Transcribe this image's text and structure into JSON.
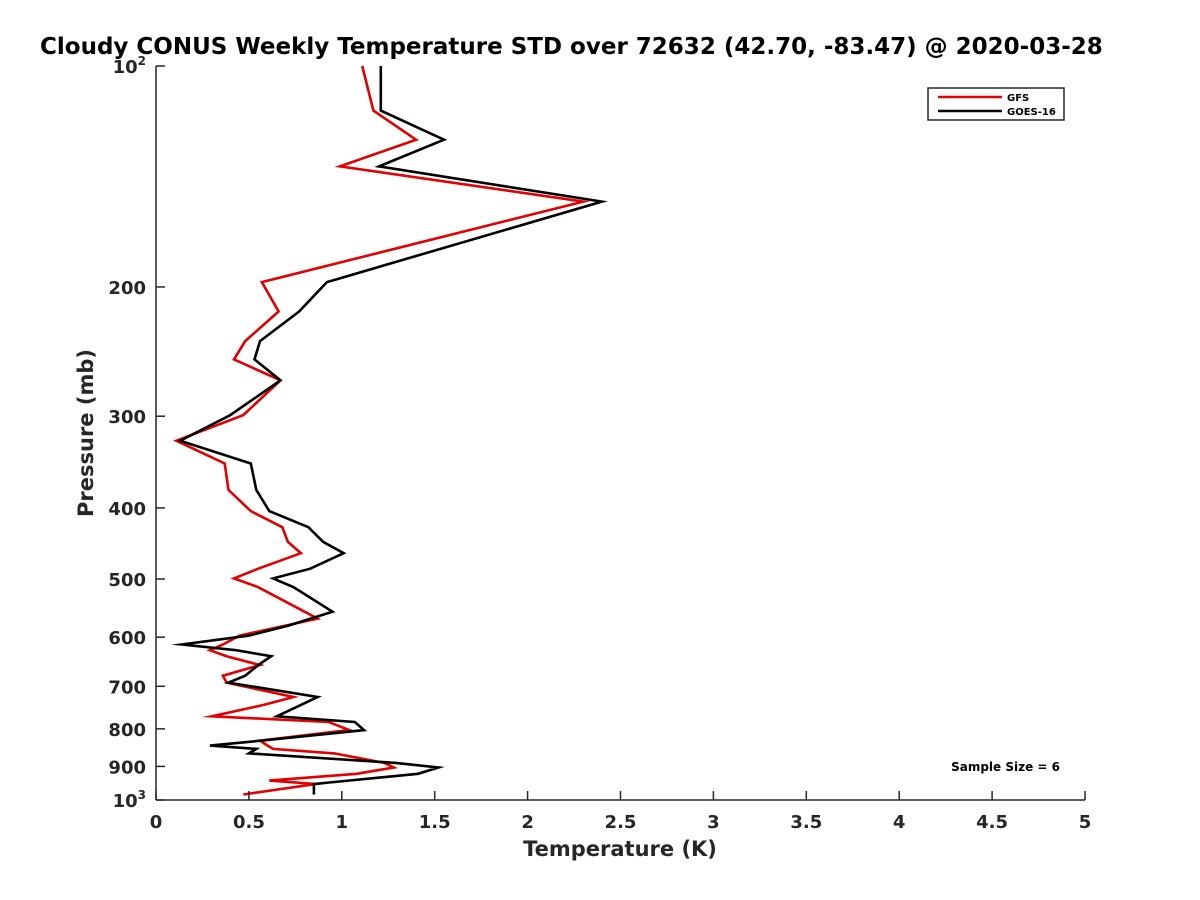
{
  "chart_data": {
    "type": "line",
    "title": "Cloudy CONUS Weekly Temperature STD over 72632 (42.70, -83.47) @ 2020-03-28",
    "xlabel": "Temperature (K)",
    "ylabel": "Pressure (mb)",
    "xlim": [
      0,
      5
    ],
    "ylim": [
      1000,
      100
    ],
    "y_scale": "log",
    "y_reversed": true,
    "grid": false,
    "legend_position": "top-right",
    "x_ticks": [
      "0",
      "0.5",
      "1",
      "1.5",
      "2",
      "2.5",
      "3",
      "3.5",
      "4",
      "4.5",
      "5"
    ],
    "y_ticks": [
      {
        "value": 100,
        "base": "10",
        "exp": "2"
      },
      {
        "value": 200,
        "label": "200"
      },
      {
        "value": 300,
        "label": "300"
      },
      {
        "value": 400,
        "label": "400"
      },
      {
        "value": 500,
        "label": "500"
      },
      {
        "value": 600,
        "label": "600"
      },
      {
        "value": 700,
        "label": "700"
      },
      {
        "value": 800,
        "label": "800"
      },
      {
        "value": 900,
        "label": "900"
      },
      {
        "value": 1000,
        "base": "10",
        "exp": "3"
      }
    ],
    "annotation": "Sample Size = 6",
    "series": [
      {
        "name": "GFS",
        "color": "#e00000",
        "points": [
          [
            1.11,
            100
          ],
          [
            1.17,
            115
          ],
          [
            1.4,
            126
          ],
          [
            0.99,
            137
          ],
          [
            2.3,
            153
          ],
          [
            0.57,
            197
          ],
          [
            0.66,
            216
          ],
          [
            0.48,
            237
          ],
          [
            0.42,
            251
          ],
          [
            0.67,
            268
          ],
          [
            0.47,
            299
          ],
          [
            0.11,
            324
          ],
          [
            0.37,
            348
          ],
          [
            0.39,
            378
          ],
          [
            0.51,
            404
          ],
          [
            0.68,
            425
          ],
          [
            0.71,
            445
          ],
          [
            0.78,
            461
          ],
          [
            0.55,
            484
          ],
          [
            0.42,
            499
          ],
          [
            0.55,
            513
          ],
          [
            0.8,
            554
          ],
          [
            0.87,
            566
          ],
          [
            0.45,
            597
          ],
          [
            0.36,
            614
          ],
          [
            0.29,
            625
          ],
          [
            0.38,
            637
          ],
          [
            0.56,
            655
          ],
          [
            0.36,
            677
          ],
          [
            0.38,
            692
          ],
          [
            0.74,
            724
          ],
          [
            0.58,
            742
          ],
          [
            0.3,
            769
          ],
          [
            0.93,
            783
          ],
          [
            1.04,
            803
          ],
          [
            0.56,
            830
          ],
          [
            0.6,
            843
          ],
          [
            0.63,
            852
          ],
          [
            0.96,
            864
          ],
          [
            1.23,
            890
          ],
          [
            1.28,
            903
          ],
          [
            1.08,
            921
          ],
          [
            0.61,
            941
          ],
          [
            0.86,
            951
          ],
          [
            0.47,
            983
          ]
        ]
      },
      {
        "name": "GOES-16",
        "color": "#000000",
        "points": [
          [
            1.21,
            100
          ],
          [
            1.21,
            115
          ],
          [
            1.55,
            126
          ],
          [
            1.2,
            137
          ],
          [
            2.4,
            153
          ],
          [
            0.92,
            197
          ],
          [
            0.77,
            216
          ],
          [
            0.56,
            237
          ],
          [
            0.53,
            251
          ],
          [
            0.67,
            268
          ],
          [
            0.4,
            299
          ],
          [
            0.13,
            324
          ],
          [
            0.51,
            348
          ],
          [
            0.54,
            378
          ],
          [
            0.61,
            404
          ],
          [
            0.82,
            425
          ],
          [
            0.9,
            445
          ],
          [
            1.01,
            461
          ],
          [
            0.83,
            484
          ],
          [
            0.63,
            499
          ],
          [
            0.74,
            513
          ],
          [
            0.95,
            554
          ],
          [
            0.71,
            579
          ],
          [
            0.5,
            597
          ],
          [
            0.14,
            614
          ],
          [
            0.43,
            625
          ],
          [
            0.62,
            637
          ],
          [
            0.55,
            655
          ],
          [
            0.48,
            677
          ],
          [
            0.39,
            692
          ],
          [
            0.87,
            724
          ],
          [
            0.78,
            742
          ],
          [
            0.65,
            769
          ],
          [
            1.07,
            783
          ],
          [
            1.12,
            803
          ],
          [
            0.57,
            830
          ],
          [
            0.29,
            843
          ],
          [
            0.54,
            852
          ],
          [
            0.5,
            864
          ],
          [
            1.29,
            890
          ],
          [
            1.52,
            903
          ],
          [
            1.41,
            921
          ],
          [
            0.85,
            951
          ],
          [
            0.85,
            983
          ]
        ]
      }
    ]
  }
}
